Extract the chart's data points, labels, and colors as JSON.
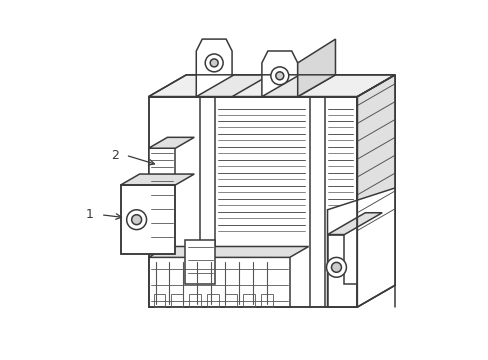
{
  "background_color": "#ffffff",
  "line_color": "#3a3a3a",
  "line_width": 1.1,
  "label_1": "1",
  "label_2": "2",
  "fig_width": 4.89,
  "fig_height": 3.6,
  "dpi": 100,
  "hatch_color": "#555555",
  "face_color_main": "#ffffff",
  "face_color_side": "#e8e8e8"
}
